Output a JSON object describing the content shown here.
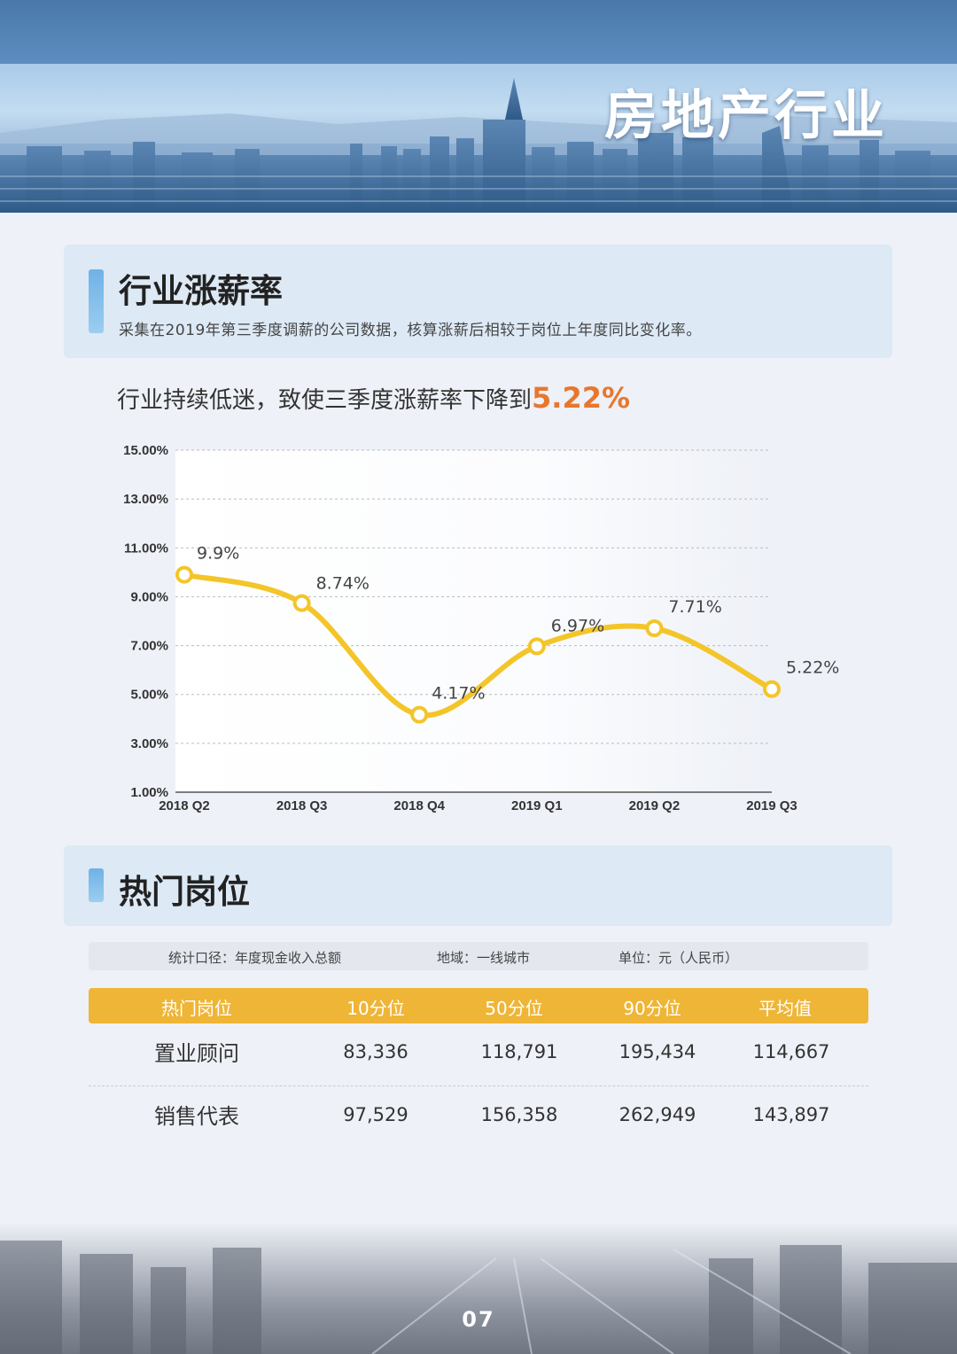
{
  "banner": {
    "title": "房地产行业"
  },
  "section1": {
    "title": "行业涨薪率",
    "desc": "采集在2019年第三季度调薪的公司数据，核算涨薪后相较于岗位上年度同比变化率。"
  },
  "headline": {
    "text": "行业持续低迷，致使三季度涨薪率下降到",
    "highlight": "5.22%"
  },
  "chart_data": {
    "type": "line",
    "categories": [
      "2018 Q2",
      "2018 Q3",
      "2018 Q4",
      "2019 Q1",
      "2019 Q2",
      "2019 Q3"
    ],
    "values": [
      9.9,
      8.74,
      4.17,
      6.97,
      7.71,
      5.22
    ],
    "data_labels": [
      "9.9%",
      "8.74%",
      "4.17%",
      "6.97%",
      "7.71%",
      "5.22%"
    ],
    "y_ticks": [
      "1.00%",
      "3.00%",
      "5.00%",
      "7.00%",
      "9.00%",
      "11.00%",
      "13.00%",
      "15.00%"
    ],
    "ylim": [
      1,
      15
    ],
    "grid": true,
    "line_color": "#f3c529",
    "smooth": true
  },
  "section2": {
    "title": "热门岗位"
  },
  "table": {
    "meta": [
      "统计口径：年度现金收入总额",
      "地域：一线城市",
      "单位：元（人民币）"
    ],
    "header": [
      "热门岗位",
      "10分位",
      "50分位",
      "90分位",
      "平均值"
    ],
    "rows": [
      [
        "置业顾问",
        "83,336",
        "118,791",
        "195,434",
        "114,667"
      ],
      [
        "销售代表",
        "97,529",
        "156,358",
        "262,949",
        "143,897"
      ]
    ]
  },
  "colors": {
    "accent": "#e8772e",
    "header_bg": "#efb536",
    "section_bg": "#dde9f5"
  },
  "footer": {
    "page": "07"
  }
}
